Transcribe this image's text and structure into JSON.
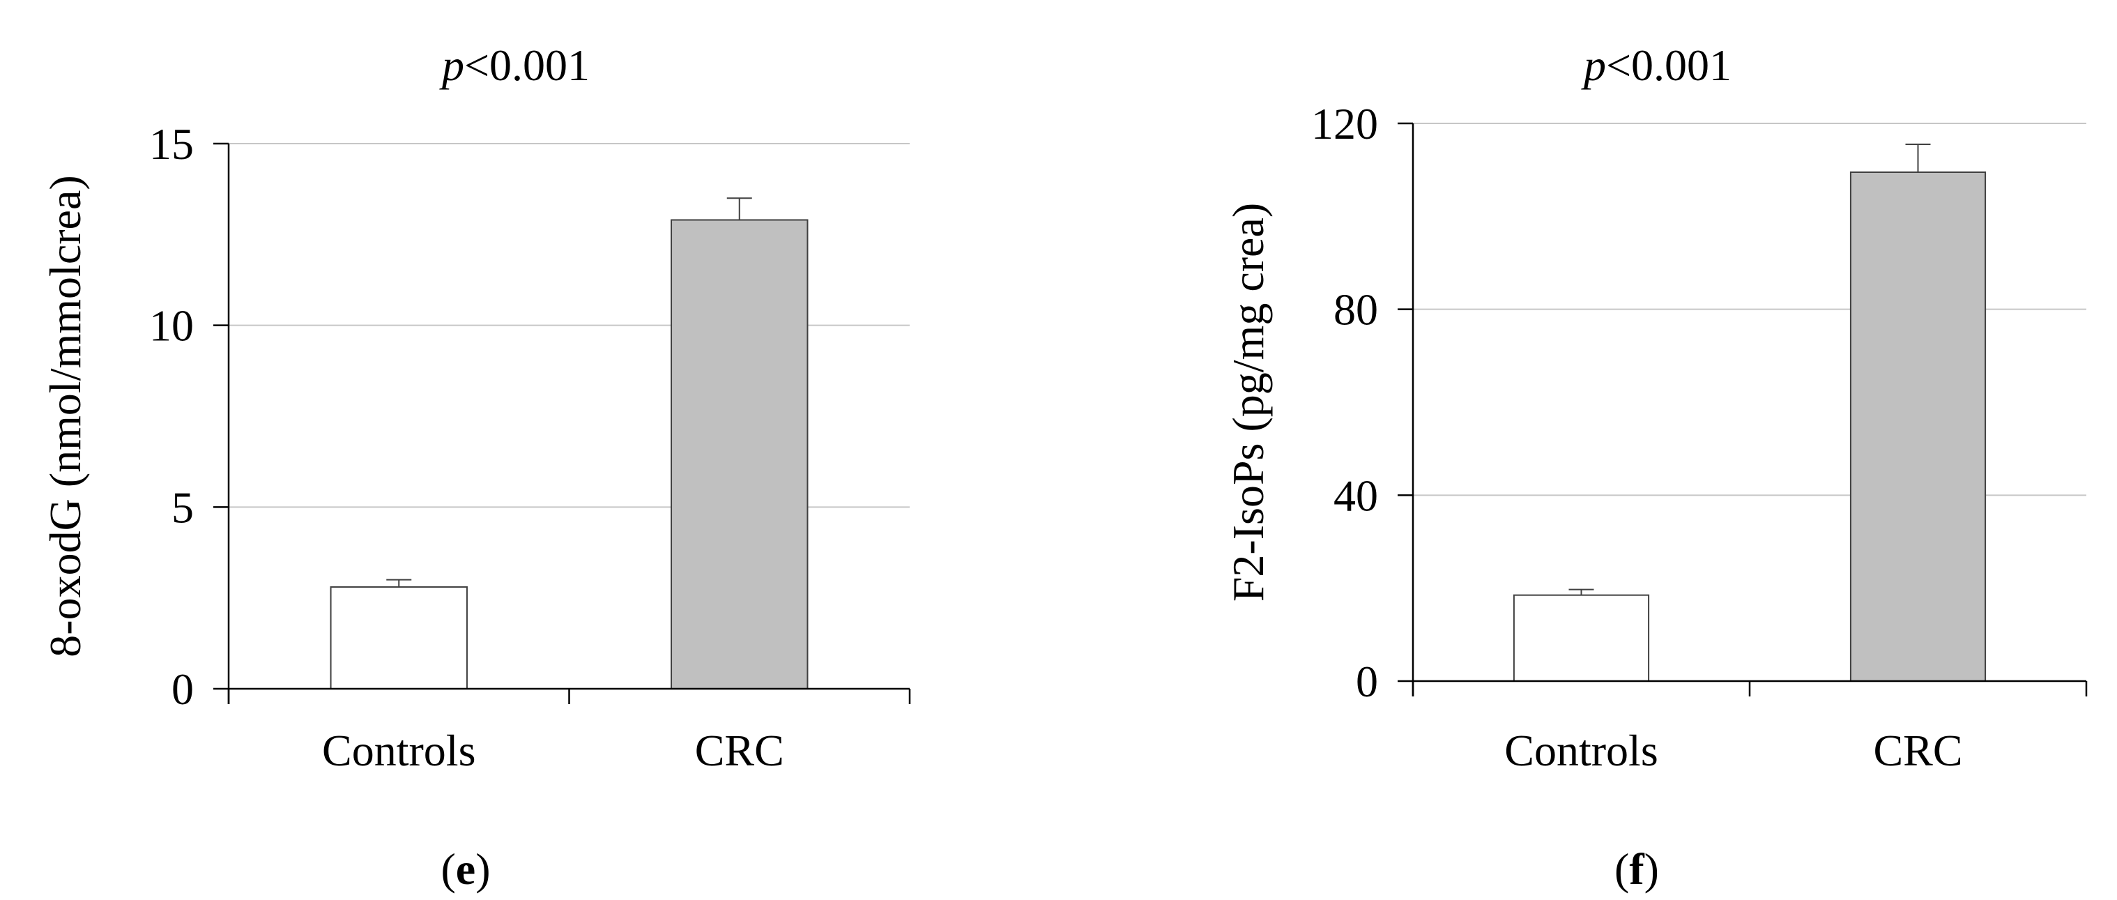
{
  "chart_data": [
    {
      "type": "bar",
      "title": "p<0.001",
      "title_parts": {
        "italic": "p",
        "rest": "<0.001"
      },
      "ylabel": "8-oxodG (nmol/mmolcrea)",
      "categories": [
        "Controls",
        "CRC"
      ],
      "values": [
        2.8,
        12.9
      ],
      "errors": [
        0.2,
        0.6
      ],
      "bar_colors": [
        "#ffffff",
        "#c0c0c0"
      ],
      "ylim": [
        0,
        15
      ],
      "yticks": [
        0,
        5,
        10,
        15
      ],
      "grid": true,
      "panel_label": "e"
    },
    {
      "type": "bar",
      "title": "p<0.001",
      "title_parts": {
        "italic": "p",
        "rest": "<0.001"
      },
      "ylabel": "F2-IsoPs (pg/mg crea)",
      "categories": [
        "Controls",
        "CRC"
      ],
      "values": [
        18.5,
        109.5
      ],
      "errors": [
        1.2,
        6.0
      ],
      "bar_colors": [
        "#ffffff",
        "#c0c0c0"
      ],
      "ylim": [
        0,
        120
      ],
      "yticks": [
        0,
        40,
        80,
        120
      ],
      "grid": true,
      "panel_label": "f"
    }
  ]
}
